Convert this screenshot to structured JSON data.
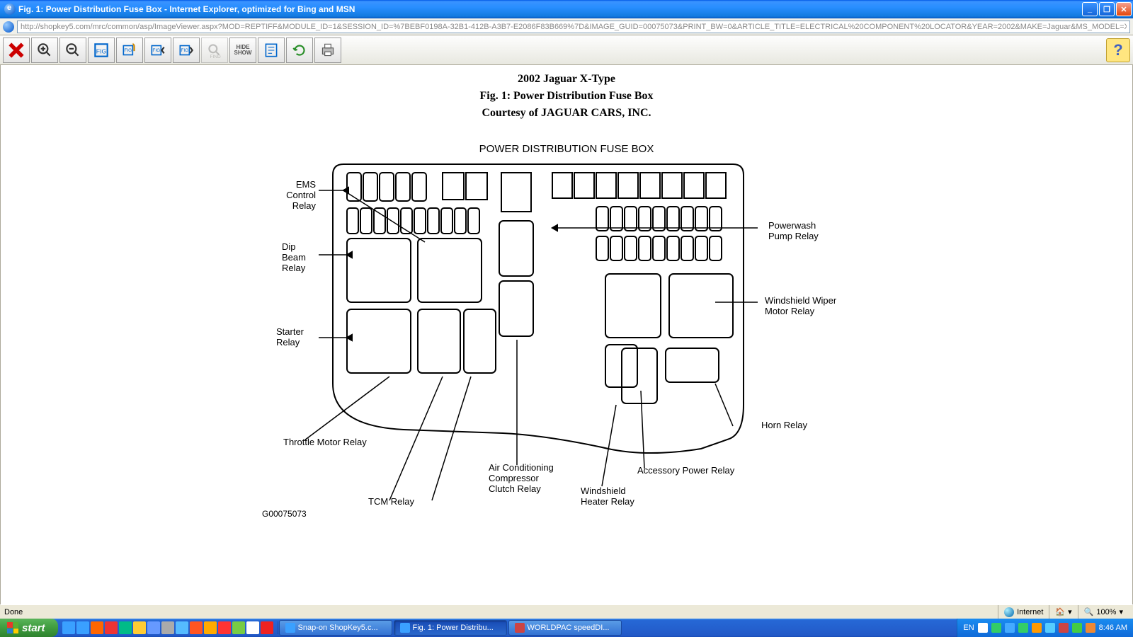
{
  "window": {
    "title": "Fig. 1: Power Distribution Fuse Box - Internet Explorer, optimized for Bing and MSN",
    "url": "http://shopkey5.com/mrc/common/asp/ImageViewer.aspx?MOD=REPTIFF&MODULE_ID=1&SESSION_ID=%7BEBF0198A-32B1-412B-A3B7-E2086F83B669%7D&IMAGE_GUID=00075073&PRINT_BW=0&ARTICLE_TITLE=ELECTRICAL%20COMPONENT%20LOCATOR&YEAR=2002&MAKE=Jaguar&MS_MODEL=X-Type&IMAGE_C"
  },
  "toolbar_hide_show": "HIDE\nSHOW",
  "heading": {
    "line1": "2002 Jaguar X-Type",
    "line2": "Fig. 1: Power Distribution Fuse Box",
    "line3": "Courtesy of JAGUAR CARS, INC."
  },
  "diagram": {
    "title": "POWER DISTRIBUTION FUSE BOX",
    "image_id": "G00075073",
    "labels": {
      "ems": "EMS\nControl\nRelay",
      "dip": "Dip\nBeam\nRelay",
      "starter": "Starter\nRelay",
      "throttle": "Throttle Motor Relay",
      "tcm": "TCM Relay",
      "ac": "Air Conditioning\nCompressor\nClutch Relay",
      "heater": "Windshield\nHeater Relay",
      "accessory": "Accessory Power Relay",
      "horn": "Horn Relay",
      "wiper": "Windshield Wiper\nMotor Relay",
      "powerwash": "Powerwash\nPump Relay"
    }
  },
  "status": {
    "done": "Done",
    "zone": "Internet",
    "zoom": "100%"
  },
  "taskbar": {
    "start": "start",
    "tasks": [
      {
        "label": "Snap-on ShopKey5.c...",
        "active": false,
        "color": "#3aa0ff"
      },
      {
        "label": "Fig. 1: Power Distribu...",
        "active": true,
        "color": "#3aa0ff"
      },
      {
        "label": "WORLDPAC speedDI...",
        "active": false,
        "color": "#c44"
      }
    ],
    "lang": "EN",
    "clock": "8:46 AM"
  }
}
